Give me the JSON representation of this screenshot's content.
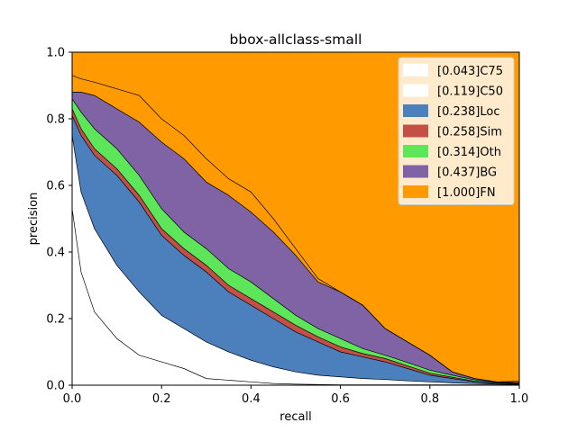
{
  "chart_data": {
    "type": "area",
    "title": "bbox-allclass-small",
    "xlabel": "recall",
    "ylabel": "precision",
    "xlim": [
      0,
      1
    ],
    "ylim": [
      0,
      1
    ],
    "xticks": [
      "0.0",
      "0.2",
      "0.4",
      "0.6",
      "0.8",
      "1.0"
    ],
    "yticks": [
      "0.0",
      "0.2",
      "0.4",
      "0.6",
      "0.8",
      "1.0"
    ],
    "grid": false,
    "legend_position": "top-right",
    "x": [
      0,
      0.02,
      0.05,
      0.1,
      0.15,
      0.2,
      0.25,
      0.3,
      0.35,
      0.4,
      0.45,
      0.5,
      0.55,
      0.6,
      0.65,
      0.7,
      0.75,
      0.8,
      0.85,
      0.9,
      0.95,
      1.0
    ],
    "series": [
      {
        "name": "[0.043]C75",
        "color": "#ffffff",
        "values": [
          0.53,
          0.34,
          0.22,
          0.14,
          0.09,
          0.07,
          0.05,
          0.02,
          0.015,
          0.01,
          0.005,
          0.003,
          0.002,
          0.001,
          0.001,
          0.001,
          0.001,
          0.001,
          0.001,
          0.001,
          0.001,
          0.001
        ]
      },
      {
        "name": "[0.119]C50",
        "color": "#ffffff",
        "values": [
          0.75,
          0.58,
          0.47,
          0.36,
          0.28,
          0.21,
          0.17,
          0.13,
          0.1,
          0.075,
          0.055,
          0.04,
          0.03,
          0.025,
          0.02,
          0.017,
          0.013,
          0.01,
          0.007,
          0.005,
          0.003,
          0.002
        ]
      },
      {
        "name": "[0.238]Loc",
        "color": "#4c80bd",
        "values": [
          0.81,
          0.75,
          0.69,
          0.63,
          0.55,
          0.45,
          0.39,
          0.34,
          0.28,
          0.24,
          0.2,
          0.16,
          0.13,
          0.1,
          0.085,
          0.07,
          0.05,
          0.03,
          0.02,
          0.01,
          0.006,
          0.004
        ]
      },
      {
        "name": "[0.258]Sim",
        "color": "#c44f47",
        "values": [
          0.83,
          0.77,
          0.71,
          0.65,
          0.57,
          0.47,
          0.41,
          0.36,
          0.3,
          0.26,
          0.22,
          0.18,
          0.145,
          0.115,
          0.095,
          0.08,
          0.058,
          0.036,
          0.024,
          0.012,
          0.007,
          0.005
        ]
      },
      {
        "name": "[0.314]Oth",
        "color": "#5de65a",
        "values": [
          0.86,
          0.82,
          0.77,
          0.71,
          0.63,
          0.53,
          0.46,
          0.41,
          0.35,
          0.31,
          0.26,
          0.21,
          0.17,
          0.14,
          0.11,
          0.09,
          0.068,
          0.045,
          0.03,
          0.016,
          0.009,
          0.006
        ]
      },
      {
        "name": "[0.437]BG",
        "color": "#8063a5",
        "values": [
          0.88,
          0.88,
          0.87,
          0.83,
          0.79,
          0.73,
          0.68,
          0.61,
          0.57,
          0.52,
          0.46,
          0.39,
          0.31,
          0.28,
          0.24,
          0.17,
          0.13,
          0.09,
          0.04,
          0.02,
          0.01,
          0.008
        ]
      },
      {
        "name": "[1.000]FN",
        "color": "#ff9a00",
        "values": [
          1,
          1,
          1,
          1,
          1,
          1,
          1,
          1,
          1,
          1,
          1,
          1,
          1,
          1,
          1,
          1,
          1,
          1,
          1,
          1,
          1,
          1
        ]
      }
    ],
    "boundary_values": [
      0.93,
      0.92,
      0.91,
      0.89,
      0.87,
      0.8,
      0.75,
      0.68,
      0.62,
      0.58,
      0.5,
      0.41,
      0.32,
      0.28,
      0.24,
      0.17,
      0.13,
      0.09,
      0.04,
      0.02,
      0.01,
      0.012
    ]
  }
}
